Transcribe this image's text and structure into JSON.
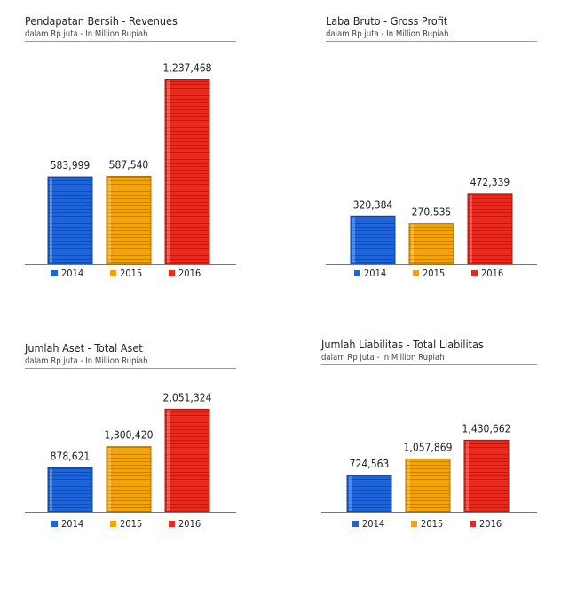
{
  "colors": {
    "y2014": "#1f63d8",
    "y2015": "#f2a30c",
    "y2016": "#e8291d"
  },
  "chart_data": [
    {
      "type": "bar",
      "title": "Pendapatan Bersih - Revenues",
      "subtitle": "dalam Rp juta - In Million Rupiah",
      "categories": [
        "2014",
        "2015",
        "2016"
      ],
      "values": [
        583999,
        587540,
        1237468
      ],
      "value_labels": [
        "583,999",
        "587,540",
        "1,237,468"
      ],
      "ylim": [
        0,
        1300000
      ],
      "legend": [
        "2014",
        "2015",
        "2016"
      ],
      "legend_placement": "bottom",
      "grid": false
    },
    {
      "type": "bar",
      "title": "Laba Bruto - Gross Profit",
      "subtitle": "dalam Rp juta - In Million Rupiah",
      "categories": [
        "2014",
        "2015",
        "2016"
      ],
      "values": [
        320384,
        270535,
        472339
      ],
      "value_labels": [
        "320,384",
        "270,535",
        "472,339"
      ],
      "ylim": [
        0,
        1300000
      ],
      "legend": [
        "2014",
        "2015",
        "2016"
      ],
      "legend_placement": "bottom",
      "grid": false
    },
    {
      "type": "bar",
      "title": "Jumlah Aset - Total Aset",
      "subtitle": "dalam Rp juta - In Million Rupiah",
      "categories": [
        "2014",
        "2015",
        "2016"
      ],
      "values": [
        878621,
        1300420,
        2051324
      ],
      "value_labels": [
        "878,621",
        "1,300,420",
        "2,051,324"
      ],
      "ylim": [
        0,
        2200000
      ],
      "legend": [
        "2014",
        "2015",
        "2016"
      ],
      "legend_placement": "bottom",
      "grid": false
    },
    {
      "type": "bar",
      "title": "Jumlah Liabilitas - Total Liabilitas",
      "subtitle": "dalam Rp juta - In Million Rupiah",
      "categories": [
        "2014",
        "2015",
        "2016"
      ],
      "values": [
        724563,
        1057869,
        1430662
      ],
      "value_labels": [
        "724,563",
        "1,057,869",
        "1,430,662"
      ],
      "ylim": [
        0,
        2200000
      ],
      "legend": [
        "2014",
        "2015",
        "2016"
      ],
      "legend_placement": "bottom",
      "grid": false
    }
  ]
}
